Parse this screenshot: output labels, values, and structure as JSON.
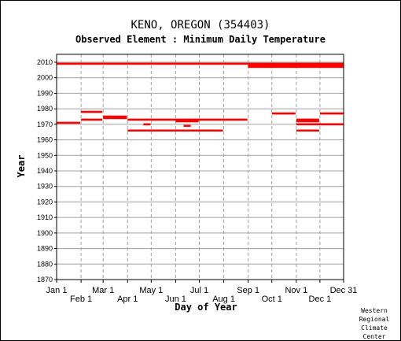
{
  "header": {
    "title": "KENO, OREGON   (354403)",
    "subtitle": "Observed Element : Minimum Daily Temperature"
  },
  "credit": {
    "line1": "Western",
    "line2": "Regional",
    "line3": "Climate",
    "line4": "Center"
  },
  "colors": {
    "series": "#ff0000",
    "grid": "#a0a0a0",
    "axis": "#000000"
  },
  "chart_data": {
    "type": "line",
    "xlabel": "Day of Year",
    "ylabel": "Year",
    "xlim": [
      1,
      365
    ],
    "ylim": [
      1870,
      2010
    ],
    "grid": true,
    "x_ticks": [
      {
        "label": "Jan 1",
        "day": 1,
        "row": 0
      },
      {
        "label": "Feb 1",
        "day": 32,
        "row": 1
      },
      {
        "label": "Mar 1",
        "day": 60,
        "row": 0
      },
      {
        "label": "Apr 1",
        "day": 91,
        "row": 1
      },
      {
        "label": "May 1",
        "day": 121,
        "row": 0
      },
      {
        "label": "Jun 1",
        "day": 152,
        "row": 1
      },
      {
        "label": "Jul 1",
        "day": 182,
        "row": 0
      },
      {
        "label": "Aug 1",
        "day": 213,
        "row": 1
      },
      {
        "label": "Sep 1",
        "day": 244,
        "row": 0
      },
      {
        "label": "Oct 1",
        "day": 274,
        "row": 1
      },
      {
        "label": "Nov 1",
        "day": 305,
        "row": 0
      },
      {
        "label": "Dec 1",
        "day": 335,
        "row": 1
      },
      {
        "label": "Dec 31",
        "day": 365,
        "row": 0
      }
    ],
    "y_ticks": [
      1870,
      1880,
      1890,
      1900,
      1910,
      1920,
      1930,
      1940,
      1950,
      1960,
      1970,
      1980,
      1990,
      2000,
      2010
    ],
    "series": [
      {
        "segments": [
          {
            "year": 2009,
            "start": 1,
            "end": 365
          },
          {
            "year": 2008,
            "start": 244,
            "end": 365
          },
          {
            "year": 2007,
            "start": 244,
            "end": 365
          },
          {
            "year": 1978,
            "start": 32,
            "end": 59
          },
          {
            "year": 1977,
            "start": 274,
            "end": 304
          },
          {
            "year": 1977,
            "start": 335,
            "end": 365
          },
          {
            "year": 1975,
            "start": 60,
            "end": 90
          },
          {
            "year": 1974,
            "start": 60,
            "end": 90
          },
          {
            "year": 1973,
            "start": 32,
            "end": 59
          },
          {
            "year": 1973,
            "start": 91,
            "end": 243
          },
          {
            "year": 1973,
            "start": 305,
            "end": 334
          },
          {
            "year": 1972,
            "start": 152,
            "end": 181
          },
          {
            "year": 1972,
            "start": 305,
            "end": 334
          },
          {
            "year": 1971,
            "start": 1,
            "end": 31
          },
          {
            "year": 1970,
            "start": 111,
            "end": 120
          },
          {
            "year": 1970,
            "start": 305,
            "end": 365
          },
          {
            "year": 1969,
            "start": 162,
            "end": 171
          },
          {
            "year": 1966,
            "start": 91,
            "end": 212
          },
          {
            "year": 1966,
            "start": 305,
            "end": 334
          }
        ]
      }
    ]
  }
}
